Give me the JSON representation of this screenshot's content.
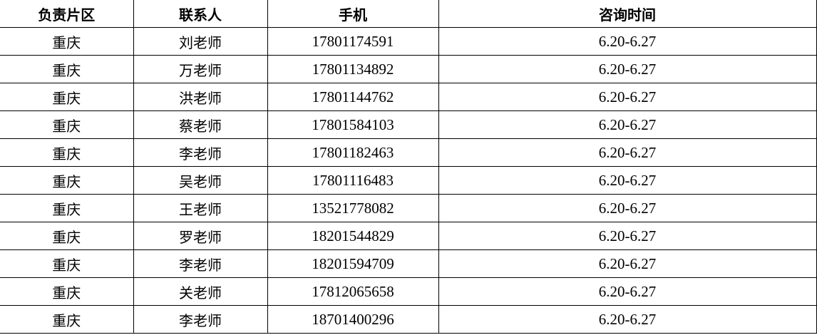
{
  "table": {
    "headers": [
      "负责片区",
      "联系人",
      "手机",
      "咨询时间"
    ],
    "rows": [
      [
        "重庆",
        "刘老师",
        "17801174591",
        "6.20-6.27"
      ],
      [
        "重庆",
        "万老师",
        "17801134892",
        "6.20-6.27"
      ],
      [
        "重庆",
        "洪老师",
        "17801144762",
        "6.20-6.27"
      ],
      [
        "重庆",
        "蔡老师",
        "17801584103",
        "6.20-6.27"
      ],
      [
        "重庆",
        "李老师",
        "17801182463",
        "6.20-6.27"
      ],
      [
        "重庆",
        "吴老师",
        "17801116483",
        "6.20-6.27"
      ],
      [
        "重庆",
        "王老师",
        "13521778082",
        "6.20-6.27"
      ],
      [
        "重庆",
        "罗老师",
        "18201544829",
        "6.20-6.27"
      ],
      [
        "重庆",
        "李老师",
        "18201594709",
        "6.20-6.27"
      ],
      [
        "重庆",
        "关老师",
        "17812065658",
        "6.20-6.27"
      ],
      [
        "重庆",
        "李老师",
        "18701400296",
        "6.20-6.27"
      ]
    ]
  }
}
